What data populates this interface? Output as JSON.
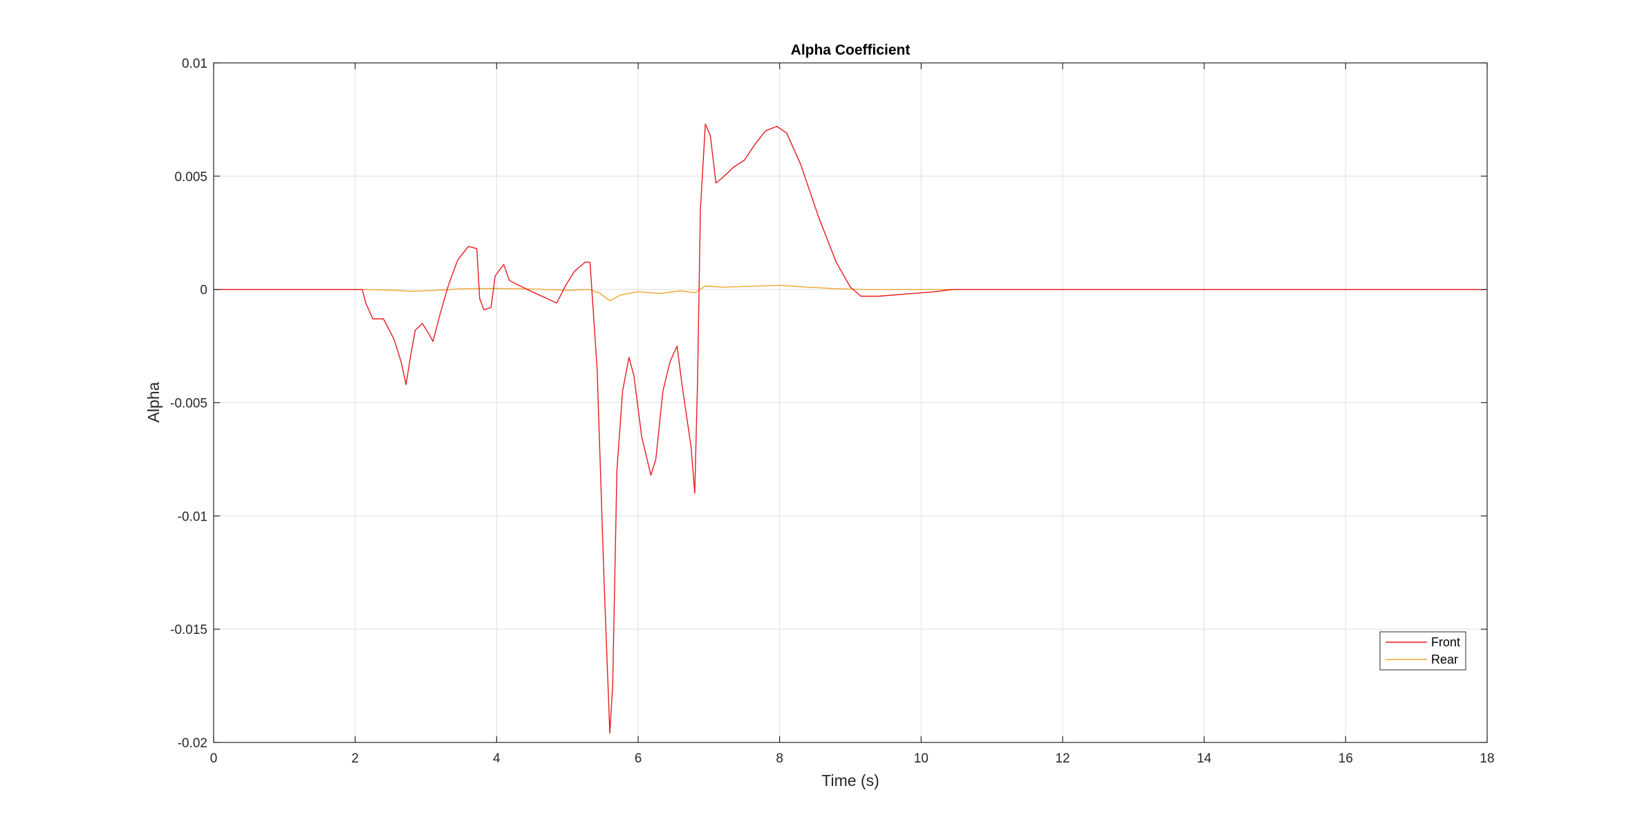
{
  "chart_data": {
    "type": "line",
    "title": "Alpha Coefficient",
    "xlabel": "Time (s)",
    "ylabel": "Alpha",
    "xlim": [
      0,
      18
    ],
    "ylim": [
      -0.02,
      0.01
    ],
    "xticks": [
      0,
      2,
      4,
      6,
      8,
      10,
      12,
      14,
      16,
      18
    ],
    "xtick_labels": [
      "0",
      "2",
      "4",
      "6",
      "8",
      "10",
      "12",
      "14",
      "16",
      "18"
    ],
    "yticks": [
      0.01,
      0.005,
      0,
      -0.005,
      -0.01,
      -0.015,
      -0.02
    ],
    "ytick_labels": [
      "0.01",
      "0.005",
      "0",
      "-0.005",
      "-0.01",
      "-0.015",
      "-0.02"
    ],
    "grid": true,
    "legend_position": "bottom-right",
    "series": [
      {
        "name": "Front",
        "color": "#e6191e",
        "points": [
          [
            0,
            0
          ],
          [
            2.1,
            0
          ],
          [
            2.15,
            -0.0006
          ],
          [
            2.25,
            -0.0013
          ],
          [
            2.4,
            -0.0013
          ],
          [
            2.55,
            -0.0022
          ],
          [
            2.65,
            -0.0032
          ],
          [
            2.72,
            -0.0042
          ],
          [
            2.78,
            -0.003
          ],
          [
            2.85,
            -0.0018
          ],
          [
            2.95,
            -0.0015
          ],
          [
            3.05,
            -0.002
          ],
          [
            3.1,
            -0.0023
          ],
          [
            3.2,
            -0.0011
          ],
          [
            3.32,
            0.0002
          ],
          [
            3.45,
            0.0013
          ],
          [
            3.6,
            0.0019
          ],
          [
            3.72,
            0.0018
          ],
          [
            3.76,
            -0.0004
          ],
          [
            3.82,
            -0.0009
          ],
          [
            3.92,
            -0.0008
          ],
          [
            3.98,
            0.0006
          ],
          [
            4.1,
            0.0011
          ],
          [
            4.18,
            0.0004
          ],
          [
            4.3,
            0.0002
          ],
          [
            4.5,
            -0.0001
          ],
          [
            4.85,
            -0.0006
          ],
          [
            4.98,
            0.0002
          ],
          [
            5.1,
            0.0008
          ],
          [
            5.25,
            0.0012
          ],
          [
            5.32,
            0.0012
          ],
          [
            5.42,
            -0.0035
          ],
          [
            5.52,
            -0.013
          ],
          [
            5.6,
            -0.0196
          ],
          [
            5.64,
            -0.0175
          ],
          [
            5.7,
            -0.008
          ],
          [
            5.78,
            -0.0045
          ],
          [
            5.87,
            -0.003
          ],
          [
            5.94,
            -0.0038
          ],
          [
            6.05,
            -0.0065
          ],
          [
            6.18,
            -0.0082
          ],
          [
            6.25,
            -0.0075
          ],
          [
            6.35,
            -0.0045
          ],
          [
            6.45,
            -0.0032
          ],
          [
            6.55,
            -0.0025
          ],
          [
            6.62,
            -0.0042
          ],
          [
            6.75,
            -0.007
          ],
          [
            6.8,
            -0.009
          ],
          [
            6.84,
            -0.004
          ],
          [
            6.88,
            0.0035
          ],
          [
            6.95,
            0.0073
          ],
          [
            7.02,
            0.0068
          ],
          [
            7.1,
            0.0047
          ],
          [
            7.18,
            0.0049
          ],
          [
            7.25,
            0.0051
          ],
          [
            7.35,
            0.0054
          ],
          [
            7.5,
            0.0057
          ],
          [
            7.65,
            0.0064
          ],
          [
            7.8,
            0.007
          ],
          [
            7.96,
            0.0072
          ],
          [
            8.1,
            0.0069
          ],
          [
            8.3,
            0.0055
          ],
          [
            8.55,
            0.0032
          ],
          [
            8.8,
            0.0012
          ],
          [
            9.0,
            0.0001
          ],
          [
            9.15,
            -0.0003
          ],
          [
            9.4,
            -0.0003
          ],
          [
            9.8,
            -0.0002
          ],
          [
            10.2,
            -0.0001
          ],
          [
            10.45,
            0
          ],
          [
            18,
            0
          ]
        ]
      },
      {
        "name": "Rear",
        "color": "#eda62e",
        "points": [
          [
            0,
            0
          ],
          [
            2.1,
            0
          ],
          [
            2.5,
            -3e-05
          ],
          [
            2.8,
            -8e-05
          ],
          [
            3.1,
            -5e-05
          ],
          [
            3.5,
            3e-05
          ],
          [
            4.0,
            4e-05
          ],
          [
            4.6,
            1e-05
          ],
          [
            5.0,
            -4e-05
          ],
          [
            5.3,
            0
          ],
          [
            5.45,
            -0.00015
          ],
          [
            5.6,
            -0.0005
          ],
          [
            5.75,
            -0.00025
          ],
          [
            6.0,
            -0.0001
          ],
          [
            6.3,
            -0.00018
          ],
          [
            6.6,
            -6e-05
          ],
          [
            6.8,
            -0.00015
          ],
          [
            6.95,
            0.00015
          ],
          [
            7.2,
            0.0001
          ],
          [
            7.6,
            0.00014
          ],
          [
            8.0,
            0.00018
          ],
          [
            8.4,
            0.0001
          ],
          [
            8.8,
            3e-05
          ],
          [
            9.2,
            0
          ],
          [
            18,
            0
          ]
        ]
      }
    ]
  }
}
